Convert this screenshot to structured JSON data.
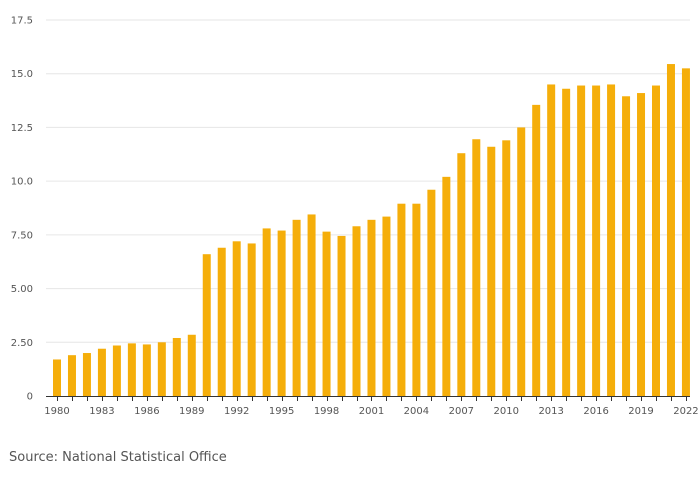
{
  "chart_data": {
    "type": "bar",
    "title": "",
    "xlabel": "",
    "ylabel": "",
    "ylim": [
      0,
      17.5
    ],
    "y_ticks": [
      {
        "value": 0,
        "label": "0"
      },
      {
        "value": 2.5,
        "label": "2.50"
      },
      {
        "value": 5,
        "label": "5.00"
      },
      {
        "value": 7.5,
        "label": "7.50"
      },
      {
        "value": 10,
        "label": "10.0"
      },
      {
        "value": 12.5,
        "label": "12.5"
      },
      {
        "value": 15,
        "label": "15.0"
      },
      {
        "value": 17.5,
        "label": "17.5"
      }
    ],
    "x_tick_labels": [
      "1980",
      "1983",
      "1986",
      "1989",
      "1992",
      "1995",
      "1998",
      "2001",
      "2004",
      "2007",
      "2010",
      "2013",
      "2016",
      "2019",
      "2022"
    ],
    "categories": [
      "1980",
      "1981",
      "1982",
      "1983",
      "1984",
      "1985",
      "1986",
      "1987",
      "1988",
      "1989",
      "1990",
      "1991",
      "1992",
      "1993",
      "1994",
      "1995",
      "1996",
      "1997",
      "1998",
      "1999",
      "2000",
      "2001",
      "2002",
      "2003",
      "2004",
      "2005",
      "2006",
      "2007",
      "2008",
      "2009",
      "2010",
      "2011",
      "2012",
      "2013",
      "2014",
      "2015",
      "2016",
      "2017",
      "2018",
      "2019",
      "2020",
      "2021",
      "2022"
    ],
    "values": [
      1.7,
      1.9,
      2.0,
      2.2,
      2.35,
      2.45,
      2.4,
      2.5,
      2.7,
      2.85,
      6.6,
      6.9,
      7.2,
      7.1,
      7.8,
      7.7,
      8.2,
      8.45,
      7.65,
      7.45,
      7.9,
      8.2,
      8.35,
      8.95,
      8.95,
      9.6,
      10.2,
      11.3,
      11.95,
      11.6,
      11.9,
      12.5,
      13.55,
      14.5,
      14.3,
      14.45,
      14.45,
      14.5,
      13.95,
      14.1,
      14.45,
      15.45,
      15.25
    ],
    "bar_color": "#F5AE0A",
    "grid_color": "#E6E6E6",
    "axis_color": "#333333"
  },
  "source": "Source: National Statistical Office"
}
